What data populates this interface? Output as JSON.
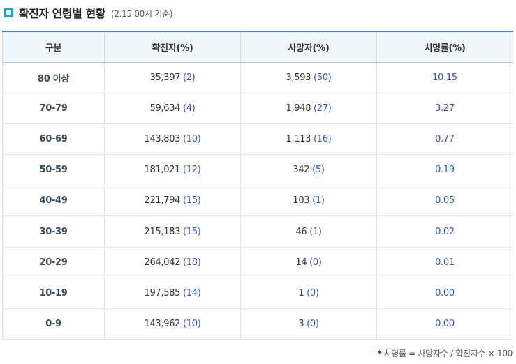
{
  "header": {
    "title": "확진자 연령별 현황",
    "subtitle": "(2.15 00시 기준)"
  },
  "table": {
    "columns": [
      "구분",
      "확진자(%)",
      "사망자(%)",
      "치명률(%)"
    ],
    "rows": [
      {
        "group": "80 이상",
        "confirmed": "35,397",
        "confirmed_pct": "(2)",
        "deaths": "3,593",
        "deaths_pct": "(50)",
        "fatality": "10.15"
      },
      {
        "group": "70-79",
        "confirmed": "59,634",
        "confirmed_pct": "(4)",
        "deaths": "1,948",
        "deaths_pct": "(27)",
        "fatality": "3.27"
      },
      {
        "group": "60-69",
        "confirmed": "143,803",
        "confirmed_pct": "(10)",
        "deaths": "1,113",
        "deaths_pct": "(16)",
        "fatality": "0.77"
      },
      {
        "group": "50-59",
        "confirmed": "181,021",
        "confirmed_pct": "(12)",
        "deaths": "342",
        "deaths_pct": "(5)",
        "fatality": "0.19"
      },
      {
        "group": "40-49",
        "confirmed": "221,794",
        "confirmed_pct": "(15)",
        "deaths": "103",
        "deaths_pct": "(1)",
        "fatality": "0.05"
      },
      {
        "group": "30-39",
        "confirmed": "215,183",
        "confirmed_pct": "(15)",
        "deaths": "46",
        "deaths_pct": "(1)",
        "fatality": "0.02"
      },
      {
        "group": "20-29",
        "confirmed": "264,042",
        "confirmed_pct": "(18)",
        "deaths": "14",
        "deaths_pct": "(0)",
        "fatality": "0.01"
      },
      {
        "group": "10-19",
        "confirmed": "197,585",
        "confirmed_pct": "(14)",
        "deaths": "1",
        "deaths_pct": "(0)",
        "fatality": "0.00"
      },
      {
        "group": "0-9",
        "confirmed": "143,962",
        "confirmed_pct": "(10)",
        "deaths": "3",
        "deaths_pct": "(0)",
        "fatality": "0.00"
      }
    ]
  },
  "footnote": {
    "marker": "*",
    "text": "치명률 = 사망자수 / 확진자수 × 100"
  },
  "colors": {
    "accent": "#1e9fd4",
    "header_border": "#4a7bb4",
    "header_bg": "#f1f6fb",
    "pct_text": "#3a58a8",
    "footnote_marker": "#d0021b"
  },
  "icons": {
    "title_marker": "square-icon"
  }
}
